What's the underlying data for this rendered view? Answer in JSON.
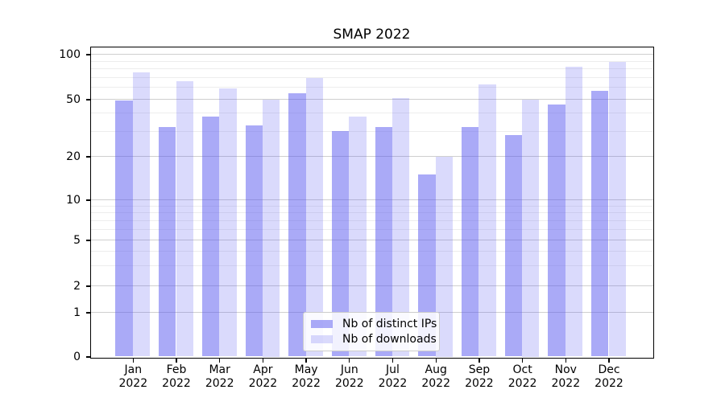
{
  "title": "SMAP 2022",
  "chart_data": {
    "type": "bar",
    "title": "SMAP 2022",
    "x_categories": [
      "Jan",
      "Feb",
      "Mar",
      "Apr",
      "May",
      "Jun",
      "Jul",
      "Aug",
      "Sep",
      "Oct",
      "Nov",
      "Dec"
    ],
    "x_year": "2022",
    "series": [
      {
        "name": "Nb of distinct IPs",
        "values": [
          49,
          32,
          38,
          33,
          55,
          30,
          32,
          15,
          32,
          28,
          46,
          57
        ]
      },
      {
        "name": "Nb of downloads",
        "values": [
          76,
          66,
          59,
          50,
          69,
          38,
          51,
          20,
          63,
          50,
          83,
          89
        ]
      }
    ],
    "y_scale": "symlog",
    "y_ticks": [
      100,
      50,
      20,
      10,
      5,
      2,
      1,
      0
    ],
    "y_minor_ticks": [
      90,
      80,
      70,
      60,
      40,
      30,
      9,
      8,
      7,
      6,
      4,
      3
    ],
    "ylim": [
      0,
      112
    ],
    "grid": true,
    "legend_position": "lower center"
  },
  "colors": {
    "bar_base": "#5555f0",
    "bar_dark_alpha": 0.5,
    "bar_light_alpha": 0.22,
    "bar_dark_hex": "#aaaaf7",
    "bar_light_hex": "#d9d9fa",
    "grid_major": "#cfcfcf",
    "grid_minor": "#ededed",
    "spine": "#000000",
    "text": "#000000",
    "legend_border": "#cccccc"
  },
  "legend": {
    "items": [
      {
        "label": "Nb of distinct IPs"
      },
      {
        "label": "Nb of downloads"
      }
    ]
  }
}
